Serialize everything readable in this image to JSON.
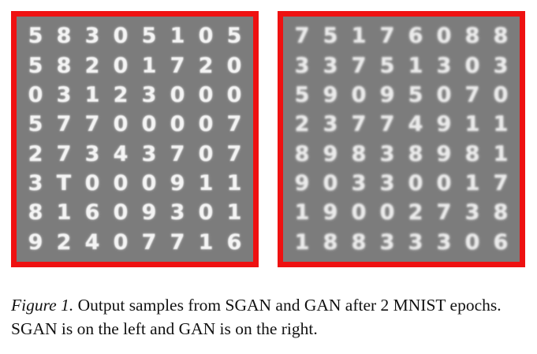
{
  "figure": {
    "left_panel": {
      "border_color": "#ee1111",
      "background": "#7c7c7c",
      "rows": [
        [
          "5",
          "8",
          "3",
          "0",
          "5",
          "1",
          "0",
          "5"
        ],
        [
          "5",
          "8",
          "2",
          "0",
          "1",
          "7",
          "2",
          "0"
        ],
        [
          "0",
          "3",
          "1",
          "2",
          "3",
          "0",
          "0",
          "0"
        ],
        [
          "5",
          "7",
          "7",
          "0",
          "0",
          "0",
          "0",
          "7"
        ],
        [
          "2",
          "7",
          "3",
          "4",
          "3",
          "7",
          "0",
          "7"
        ],
        [
          "3",
          "T",
          "0",
          "0",
          "0",
          "9",
          "1",
          "1"
        ],
        [
          "8",
          "1",
          "6",
          "0",
          "9",
          "3",
          "0",
          "1"
        ],
        [
          "9",
          "2",
          "4",
          "0",
          "7",
          "7",
          "1",
          "6"
        ]
      ]
    },
    "right_panel": {
      "border_color": "#ee1111",
      "background": "#7c7c7c",
      "rows": [
        [
          "7",
          "5",
          "1",
          "7",
          "6",
          "0",
          "8",
          "8"
        ],
        [
          "3",
          "3",
          "7",
          "5",
          "1",
          "3",
          "0",
          "3"
        ],
        [
          "5",
          "9",
          "0",
          "9",
          "5",
          "0",
          "7",
          "0"
        ],
        [
          "2",
          "3",
          "7",
          "7",
          "4",
          "9",
          "1",
          "1"
        ],
        [
          "8",
          "9",
          "8",
          "3",
          "8",
          "9",
          "8",
          "1"
        ],
        [
          "9",
          "0",
          "3",
          "3",
          "0",
          "0",
          "1",
          "7"
        ],
        [
          "1",
          "9",
          "0",
          "0",
          "2",
          "7",
          "3",
          "8"
        ],
        [
          "1",
          "8",
          "8",
          "3",
          "3",
          "3",
          "0",
          "6"
        ]
      ]
    }
  },
  "caption": {
    "label": "Figure 1.",
    "text": " Output samples from SGAN and GAN after 2 MNIST epochs. SGAN is on the left and GAN is on the right."
  }
}
